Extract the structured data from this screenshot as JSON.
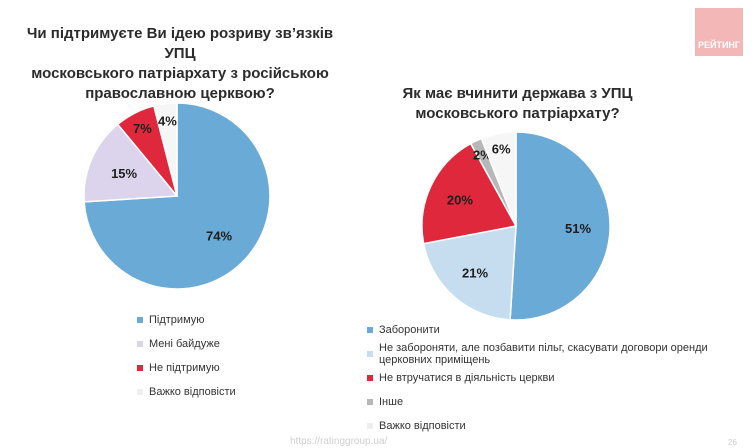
{
  "brand": {
    "logo_text": "РЕЙТИНГ",
    "color": "#f4b7b7"
  },
  "footer": {
    "url": "https://ratinggroup.ua/",
    "page": "26"
  },
  "colors": {
    "blue": "#6aaad6",
    "lightblue": "#c6ddf0",
    "lavender": "#dcd3ec",
    "red": "#e0283c",
    "grey": "#b7b7b7",
    "white": "#f6f6f6"
  },
  "chart_data": [
    {
      "type": "pie",
      "title": "Чи підтримуєте Ви ідею розриву зв’язків УПЦ московського патріархату з російською православною церквою?",
      "title_lines": [
        "Чи підтримуєте Ви ідею розриву зв’язків УПЦ",
        "московського патріархату з російською",
        "православною церквою?"
      ],
      "slices": [
        {
          "label": "Підтримую",
          "value": 74,
          "display": "74%",
          "color": "#6aaad6"
        },
        {
          "label": "Мені байдуже",
          "value": 15,
          "display": "15%",
          "color": "#dcd3ec"
        },
        {
          "label": "Не підтримую",
          "value": 7,
          "display": "7%",
          "color": "#e0283c"
        },
        {
          "label": "Важко відповісти",
          "value": 4,
          "display": "4%",
          "color": "#f6f6f6"
        }
      ]
    },
    {
      "type": "pie",
      "title": "Як має вчинити держава з УПЦ московського патріархату?",
      "title_lines": [
        "Як має вчинити держава з УПЦ",
        "московського патріархату?"
      ],
      "slices": [
        {
          "label": "Заборонити",
          "value": 51,
          "display": "51%",
          "color": "#6aaad6"
        },
        {
          "label": "Не забороняти, але позбавити пільг, скасувати договори оренди церковних приміщень",
          "value": 21,
          "display": "21%",
          "color": "#c6ddf0"
        },
        {
          "label": "Не втручатися в діяльність церкви",
          "value": 20,
          "display": "20%",
          "color": "#e0283c"
        },
        {
          "label": "Інше",
          "value": 2,
          "display": "2%",
          "color": "#b7b7b7"
        },
        {
          "label": "Важко відповісти",
          "value": 6,
          "display": "6%",
          "color": "#f6f6f6"
        }
      ]
    }
  ]
}
